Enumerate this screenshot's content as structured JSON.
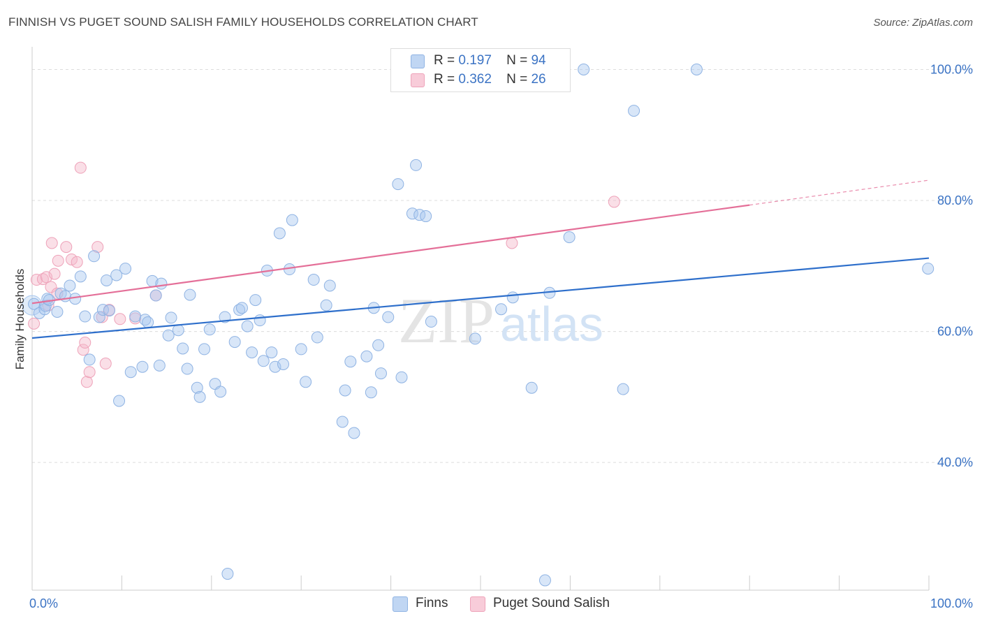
{
  "header": {
    "title": "FINNISH VS PUGET SOUND SALISH FAMILY HOUSEHOLDS CORRELATION CHART",
    "source": "Source: ZipAtlas.com"
  },
  "watermark": {
    "zip": "ZIP",
    "atlas": "atlas"
  },
  "legend": {
    "rows": [
      {
        "r_label": "R =",
        "r_value": "0.197",
        "n_label": "N =",
        "n_value": "94",
        "color": "#a9c8ef"
      },
      {
        "r_label": "R =",
        "r_value": "0.362",
        "n_label": "N =",
        "n_value": "26",
        "color": "#f4b8c9"
      }
    ]
  },
  "bottom_legend": {
    "items": [
      {
        "label": "Finns"
      },
      {
        "label": "Puget Sound Salish"
      }
    ]
  },
  "chart_data": {
    "type": "scatter",
    "title": "FINNISH VS PUGET SOUND SALISH FAMILY HOUSEHOLDS CORRELATION CHART",
    "xlabel": "",
    "ylabel": "Family Households",
    "xlim": [
      0,
      100
    ],
    "ylim": [
      20.5,
      104
    ],
    "x_tick_labels": [
      "0.0%",
      "100.0%"
    ],
    "y_ticks": [
      40,
      60,
      80,
      100
    ],
    "y_tick_labels": [
      "40.0%",
      "60.0%",
      "80.0%",
      "100.0%"
    ],
    "grid": "horizontal dashed",
    "legend_placement": "top-center",
    "series": [
      {
        "name": "Finns",
        "color": "#a9c8ef",
        "line_color": "#2e6fcb",
        "trend": {
          "x": [
            0,
            100
          ],
          "y": [
            59.0,
            71.2
          ]
        },
        "points": [
          [
            0.2,
            64.2
          ],
          [
            0.8,
            62.8
          ],
          [
            1.4,
            63.4
          ],
          [
            1.5,
            63.9
          ],
          [
            1.7,
            65.0
          ],
          [
            1.9,
            64.8
          ],
          [
            2.8,
            63.0
          ],
          [
            3.2,
            65.8
          ],
          [
            3.7,
            65.4
          ],
          [
            4.2,
            67.0
          ],
          [
            4.8,
            65.0
          ],
          [
            5.4,
            68.4
          ],
          [
            5.9,
            62.3
          ],
          [
            6.4,
            55.7
          ],
          [
            6.9,
            71.5
          ],
          [
            7.5,
            62.2
          ],
          [
            7.9,
            63.3
          ],
          [
            8.3,
            67.8
          ],
          [
            8.6,
            63.2
          ],
          [
            9.4,
            68.6
          ],
          [
            9.7,
            49.4
          ],
          [
            10.4,
            69.6
          ],
          [
            11.0,
            53.8
          ],
          [
            11.5,
            62.3
          ],
          [
            12.3,
            54.6
          ],
          [
            12.6,
            61.8
          ],
          [
            12.9,
            61.4
          ],
          [
            13.4,
            67.7
          ],
          [
            13.8,
            65.5
          ],
          [
            14.2,
            54.8
          ],
          [
            14.4,
            67.3
          ],
          [
            15.2,
            59.4
          ],
          [
            15.5,
            62.1
          ],
          [
            16.3,
            60.2
          ],
          [
            16.8,
            57.4
          ],
          [
            17.3,
            54.3
          ],
          [
            17.6,
            65.6
          ],
          [
            18.4,
            51.4
          ],
          [
            18.7,
            50.0
          ],
          [
            19.2,
            57.3
          ],
          [
            19.8,
            60.3
          ],
          [
            20.4,
            52.0
          ],
          [
            21.0,
            50.8
          ],
          [
            21.5,
            62.2
          ],
          [
            21.8,
            23.0
          ],
          [
            22.6,
            58.4
          ],
          [
            23.1,
            63.3
          ],
          [
            23.4,
            63.6
          ],
          [
            24.0,
            60.8
          ],
          [
            24.5,
            56.8
          ],
          [
            24.9,
            64.8
          ],
          [
            25.4,
            61.7
          ],
          [
            25.8,
            55.5
          ],
          [
            26.2,
            69.3
          ],
          [
            26.7,
            56.8
          ],
          [
            27.1,
            54.6
          ],
          [
            27.6,
            75.0
          ],
          [
            28.0,
            55.0
          ],
          [
            28.7,
            69.5
          ],
          [
            29.0,
            77.0
          ],
          [
            30.0,
            57.3
          ],
          [
            30.5,
            52.3
          ],
          [
            31.4,
            67.9
          ],
          [
            31.8,
            59.1
          ],
          [
            32.8,
            64.0
          ],
          [
            33.2,
            67.0
          ],
          [
            34.6,
            46.2
          ],
          [
            34.9,
            51.0
          ],
          [
            35.5,
            55.4
          ],
          [
            35.9,
            44.5
          ],
          [
            37.3,
            56.2
          ],
          [
            37.8,
            50.7
          ],
          [
            38.1,
            63.6
          ],
          [
            38.6,
            57.9
          ],
          [
            38.9,
            53.6
          ],
          [
            39.7,
            62.2
          ],
          [
            40.8,
            82.5
          ],
          [
            41.2,
            53.0
          ],
          [
            42.4,
            78.0
          ],
          [
            42.8,
            85.4
          ],
          [
            43.2,
            77.8
          ],
          [
            43.9,
            77.6
          ],
          [
            44.5,
            61.5
          ],
          [
            49.4,
            58.9
          ],
          [
            52.3,
            63.4
          ],
          [
            53.6,
            65.2
          ],
          [
            55.7,
            51.4
          ],
          [
            57.2,
            22.0
          ],
          [
            57.7,
            65.9
          ],
          [
            59.9,
            74.4
          ],
          [
            61.5,
            100.0
          ],
          [
            65.9,
            51.2
          ],
          [
            67.1,
            93.7
          ],
          [
            74.1,
            100.0
          ],
          [
            99.9,
            69.6
          ]
        ]
      },
      {
        "name": "Puget Sound Salish",
        "color": "#f4b8c9",
        "line_color": "#e46f98",
        "trend": {
          "x": [
            0,
            80
          ],
          "y": [
            64.3,
            79.3
          ],
          "dashed_to": {
            "x": 100,
            "y": 83.1
          }
        },
        "points": [
          [
            0.2,
            61.2
          ],
          [
            0.5,
            67.9
          ],
          [
            1.2,
            68.0
          ],
          [
            1.6,
            68.3
          ],
          [
            1.8,
            64.0
          ],
          [
            2.1,
            66.8
          ],
          [
            2.2,
            73.5
          ],
          [
            2.5,
            68.8
          ],
          [
            2.8,
            65.8
          ],
          [
            2.9,
            70.8
          ],
          [
            3.8,
            72.9
          ],
          [
            4.4,
            71.0
          ],
          [
            5.0,
            70.6
          ],
          [
            5.4,
            85.0
          ],
          [
            5.7,
            57.2
          ],
          [
            5.9,
            58.3
          ],
          [
            6.1,
            52.3
          ],
          [
            6.4,
            53.8
          ],
          [
            7.3,
            72.9
          ],
          [
            7.8,
            62.2
          ],
          [
            8.2,
            55.1
          ],
          [
            8.6,
            63.3
          ],
          [
            9.8,
            61.9
          ],
          [
            11.5,
            62.0
          ],
          [
            13.8,
            65.5
          ],
          [
            53.5,
            73.5
          ],
          [
            64.9,
            79.8
          ]
        ]
      }
    ]
  }
}
